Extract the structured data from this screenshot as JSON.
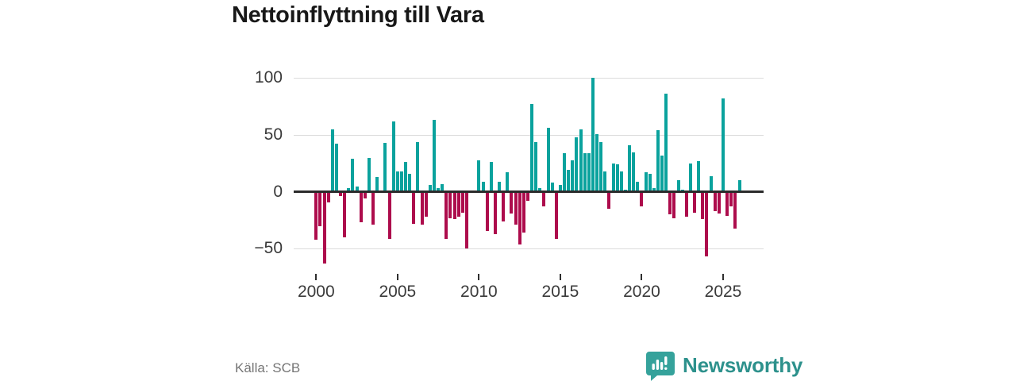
{
  "title": "Nettoinflyttning till Vara",
  "source": {
    "text": "Källa: SCB"
  },
  "brand": {
    "name": "Newsworthy",
    "color": "#2d918c",
    "icon": "speech-bubble-bar-chart-icon"
  },
  "colors": {
    "positive_bar": "#0aa29d",
    "negative_bar": "#ad0c4c",
    "zero_axis": "#2b2b2b",
    "gridline": "#dcdcdc",
    "tick_label": "#3a3a3a",
    "title_text": "#181818",
    "source_text": "#757575"
  },
  "chart_data": {
    "type": "bar",
    "title": "Nettoinflyttning till Vara",
    "xlabel": "",
    "ylabel": "",
    "frequency": "quarterly",
    "start_period": "2000 Q1",
    "end_period": "2026 Q1",
    "ylim": [
      -68,
      108
    ],
    "grid": "horizontal",
    "legend": "none",
    "y_ticks": [
      {
        "label": "100",
        "value": 100
      },
      {
        "label": "50",
        "value": 50
      },
      {
        "label": "0",
        "value": 0
      },
      {
        "label": "−50",
        "value": -50
      }
    ],
    "x_ticks": [
      {
        "label": "2000",
        "quarter_index": 0
      },
      {
        "label": "2005",
        "quarter_index": 20
      },
      {
        "label": "2010",
        "quarter_index": 40
      },
      {
        "label": "2015",
        "quarter_index": 60
      },
      {
        "label": "2020",
        "quarter_index": 80
      },
      {
        "label": "2025",
        "quarter_index": 100
      }
    ],
    "values": [
      -41,
      -29,
      -62,
      -8,
      55,
      42,
      -3,
      -39,
      3,
      29,
      5,
      -26,
      -5,
      30,
      -28,
      13,
      0,
      43,
      -40,
      62,
      18,
      18,
      26,
      16,
      -27,
      44,
      -28,
      -21,
      6,
      63,
      3,
      7,
      -40,
      -22,
      -23,
      -21,
      -17,
      -49,
      0,
      0,
      28,
      9,
      -33,
      26,
      -36,
      9,
      -25,
      17,
      -18,
      -28,
      -45,
      -35,
      -7,
      77,
      44,
      3,
      -12,
      56,
      8,
      -40,
      6,
      34,
      19,
      28,
      48,
      55,
      34,
      34,
      100,
      51,
      44,
      18,
      -14,
      25,
      24,
      18,
      2,
      41,
      35,
      9,
      -12,
      17,
      16,
      3,
      54,
      32,
      86,
      -19,
      -22,
      10,
      2,
      -21,
      25,
      -17,
      27,
      -23,
      -56,
      14,
      -16,
      -18,
      82,
      -20,
      -12,
      -31,
      10
    ]
  }
}
